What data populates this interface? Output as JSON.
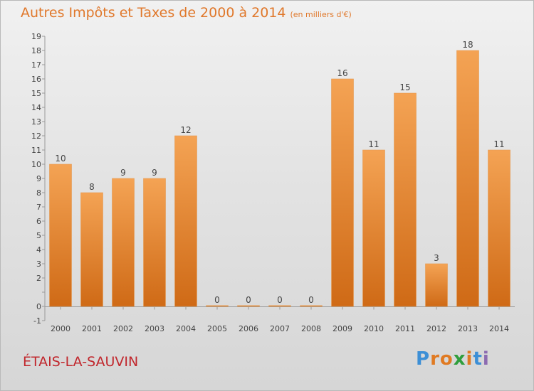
{
  "chart_data": {
    "type": "bar",
    "title": "Autres Impôts et Taxes de 2000 à 2014",
    "subtitle": "(en milliers d'€)",
    "categories": [
      "2000",
      "2001",
      "2002",
      "2003",
      "2004",
      "2005",
      "2006",
      "2007",
      "2008",
      "2009",
      "2010",
      "2011",
      "2012",
      "2013",
      "2014"
    ],
    "values": [
      10,
      8,
      9,
      9,
      12,
      0,
      0,
      0,
      0,
      16,
      11,
      15,
      3,
      18,
      11
    ],
    "data_labels": [
      "10",
      "8",
      "9",
      "9",
      "12",
      "0",
      "0",
      "0",
      "0",
      "16",
      "11",
      "15",
      "3",
      "18",
      "11"
    ],
    "ylim": [
      -1,
      19
    ],
    "yticks": [
      "-1",
      "0",
      "",
      "2",
      "3",
      "4",
      "5",
      "6",
      "7",
      "8",
      "9",
      "10",
      "11",
      "12",
      "13",
      "14",
      "15",
      "16",
      "17",
      "18",
      "19"
    ],
    "xlabel": "",
    "ylabel": "",
    "grid": false,
    "bar_color": "#f0913a",
    "bar_color_dark": "#d06a14"
  },
  "footer": {
    "town": "ÉTAIS-LA-SAUVIN",
    "logo": [
      "P",
      "r",
      "o",
      "x",
      "i",
      "t",
      "i"
    ],
    "logo_colors": [
      "#3d8fd6",
      "#e07a22",
      "#e07a22",
      "#2f9e3c",
      "#e07a22",
      "#3d8fd6",
      "#8c6bb1"
    ]
  },
  "colors": {
    "title": "#e0782b",
    "town": "#c1272d"
  }
}
